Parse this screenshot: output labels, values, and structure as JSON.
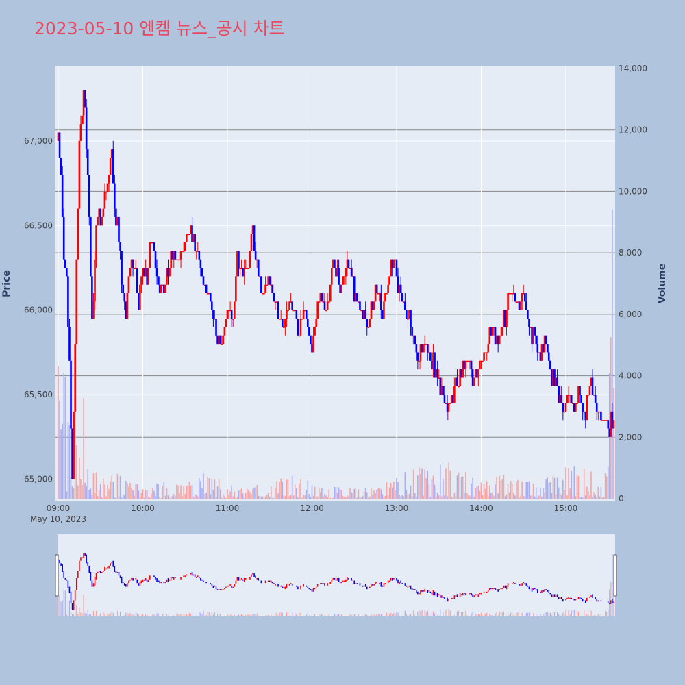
{
  "title": "2023-05-10 엔켐 뉴스_공시 차트",
  "colors": {
    "background": "#b0c4de",
    "plot_bg": "#e5ecf6",
    "title": "#e8475f",
    "up": "#ff0000",
    "down": "#0000ff",
    "up_volume": "#f4a6a6",
    "down_volume": "#a9aef5",
    "volume_grid": "#888888",
    "price_grid": "#ffffff"
  },
  "chart_data": {
    "type": "candlestick",
    "date_label": "May 10, 2023",
    "y_left_label": "Price",
    "y_right_label": "Volume",
    "x_ticks": [
      "09:00",
      "10:00",
      "11:00",
      "12:00",
      "13:00",
      "14:00",
      "15:00"
    ],
    "x_range_minutes": [
      0,
      395
    ],
    "price_range": [
      64885,
      67380
    ],
    "price_ticks": [
      "65,000",
      "65,500",
      "66,000",
      "66,500",
      "67,000"
    ],
    "price_tick_values": [
      65000,
      65500,
      66000,
      66500,
      67000
    ],
    "volume_range": [
      0,
      14000
    ],
    "volume_ticks": [
      "0",
      "2,000",
      "4,000",
      "6,000",
      "8,000",
      "10,000",
      "12,000",
      "14,000"
    ],
    "volume_tick_values": [
      0,
      2000,
      4000,
      6000,
      8000,
      10000,
      12000,
      14000
    ],
    "price_path": [
      [
        0,
        67000
      ],
      [
        2,
        66800
      ],
      [
        4,
        66300
      ],
      [
        6,
        66200
      ],
      [
        7,
        65900
      ],
      [
        8,
        65700
      ],
      [
        9,
        65300
      ],
      [
        10,
        65000
      ],
      [
        11,
        65400
      ],
      [
        12,
        65800
      ],
      [
        13,
        66300
      ],
      [
        14,
        66600
      ],
      [
        15,
        67000
      ],
      [
        16,
        67100
      ],
      [
        17,
        67200
      ],
      [
        18,
        67300
      ],
      [
        19,
        67200
      ],
      [
        20,
        67000
      ],
      [
        21,
        66800
      ],
      [
        22,
        66600
      ],
      [
        23,
        66200
      ],
      [
        24,
        65900
      ],
      [
        25,
        66000
      ],
      [
        26,
        66300
      ],
      [
        27,
        66500
      ],
      [
        29,
        66600
      ],
      [
        30,
        66500
      ],
      [
        32,
        66600
      ],
      [
        34,
        66700
      ],
      [
        36,
        66800
      ],
      [
        38,
        66900
      ],
      [
        40,
        66600
      ],
      [
        42,
        66500
      ],
      [
        44,
        66300
      ],
      [
        46,
        66100
      ],
      [
        48,
        66000
      ],
      [
        50,
        66200
      ],
      [
        52,
        66300
      ],
      [
        55,
        66200
      ],
      [
        57,
        66000
      ],
      [
        60,
        66300
      ],
      [
        63,
        66200
      ],
      [
        66,
        66400
      ],
      [
        70,
        66200
      ],
      [
        75,
        66100
      ],
      [
        80,
        66300
      ],
      [
        85,
        66300
      ],
      [
        90,
        66400
      ],
      [
        93,
        66500
      ],
      [
        97,
        66400
      ],
      [
        100,
        66300
      ],
      [
        105,
        66100
      ],
      [
        108,
        66000
      ],
      [
        112,
        65900
      ],
      [
        115,
        65800
      ],
      [
        118,
        65900
      ],
      [
        121,
        66000
      ],
      [
        124,
        65950
      ],
      [
        127,
        66300
      ],
      [
        130,
        66200
      ],
      [
        135,
        66300
      ],
      [
        138,
        66500
      ],
      [
        140,
        66300
      ],
      [
        145,
        66100
      ],
      [
        150,
        66200
      ],
      [
        155,
        66000
      ],
      [
        160,
        65900
      ],
      [
        165,
        66100
      ],
      [
        170,
        65900
      ],
      [
        175,
        66000
      ],
      [
        180,
        65800
      ],
      [
        185,
        66100
      ],
      [
        190,
        66000
      ],
      [
        195,
        66300
      ],
      [
        200,
        66100
      ],
      [
        205,
        66300
      ],
      [
        210,
        66100
      ],
      [
        215,
        66000
      ],
      [
        220,
        65900
      ],
      [
        225,
        66100
      ],
      [
        230,
        66000
      ],
      [
        235,
        66200
      ],
      [
        238,
        66300
      ],
      [
        242,
        66100
      ],
      [
        246,
        66000
      ],
      [
        250,
        65900
      ],
      [
        255,
        65700
      ],
      [
        260,
        65800
      ],
      [
        265,
        65700
      ],
      [
        270,
        65600
      ],
      [
        273,
        65500
      ],
      [
        276,
        65400
      ],
      [
        280,
        65500
      ],
      [
        285,
        65600
      ],
      [
        290,
        65700
      ],
      [
        295,
        65600
      ],
      [
        300,
        65700
      ],
      [
        305,
        65800
      ],
      [
        308,
        65900
      ],
      [
        312,
        65800
      ],
      [
        318,
        66000
      ],
      [
        322,
        66100
      ],
      [
        326,
        66000
      ],
      [
        330,
        66100
      ],
      [
        334,
        65900
      ],
      [
        338,
        65800
      ],
      [
        342,
        65700
      ],
      [
        346,
        65800
      ],
      [
        350,
        65600
      ],
      [
        354,
        65500
      ],
      [
        358,
        65400
      ],
      [
        362,
        65500
      ],
      [
        366,
        65400
      ],
      [
        370,
        65500
      ],
      [
        374,
        65400
      ],
      [
        378,
        65600
      ],
      [
        382,
        65400
      ],
      [
        386,
        65350
      ],
      [
        390,
        65300
      ],
      [
        393,
        65350
      ]
    ],
    "volume_profile": [
      [
        0,
        4000
      ],
      [
        3,
        3200
      ],
      [
        6,
        3000
      ],
      [
        9,
        2600
      ],
      [
        12,
        2200
      ],
      [
        15,
        2000
      ],
      [
        18,
        2500
      ],
      [
        22,
        1800
      ],
      [
        25,
        800
      ],
      [
        30,
        500
      ],
      [
        40,
        600
      ],
      [
        50,
        500
      ],
      [
        60,
        300
      ],
      [
        75,
        400
      ],
      [
        90,
        350
      ],
      [
        105,
        700
      ],
      [
        115,
        450
      ],
      [
        125,
        300
      ],
      [
        150,
        350
      ],
      [
        165,
        600
      ],
      [
        180,
        400
      ],
      [
        195,
        300
      ],
      [
        210,
        250
      ],
      [
        225,
        300
      ],
      [
        240,
        500
      ],
      [
        255,
        800
      ],
      [
        265,
        600
      ],
      [
        275,
        1000
      ],
      [
        285,
        700
      ],
      [
        300,
        500
      ],
      [
        315,
        600
      ],
      [
        330,
        400
      ],
      [
        345,
        500
      ],
      [
        360,
        800
      ],
      [
        375,
        700
      ],
      [
        390,
        900
      ],
      [
        394,
        9500
      ]
    ]
  }
}
